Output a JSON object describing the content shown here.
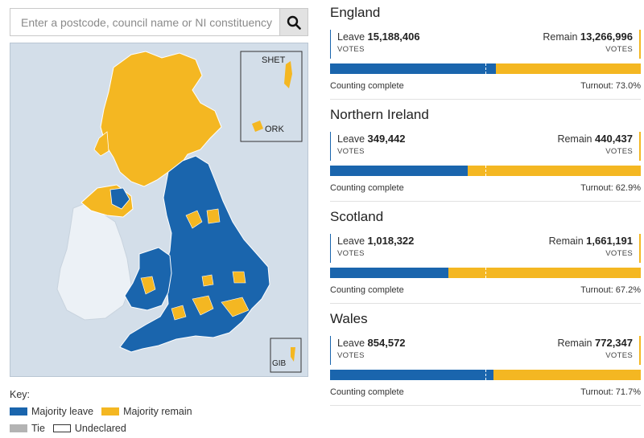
{
  "search": {
    "placeholder": "Enter a postcode, council name or NI constituency"
  },
  "map": {
    "inset_shetland": "SHET",
    "inset_orkney": "ORK",
    "inset_gibraltar": "GIB"
  },
  "key": {
    "title": "Key:",
    "items": [
      {
        "label": "Majority leave",
        "color": "#1a65ad"
      },
      {
        "label": "Majority remain",
        "color": "#f4b722"
      },
      {
        "label": "Tie",
        "color": "#b3b3b3"
      },
      {
        "label": "Undeclared",
        "color": "#ffffff"
      }
    ]
  },
  "regions": [
    {
      "name": "England",
      "leave_label": "Leave",
      "leave_votes": "15,188,406",
      "remain_label": "Remain",
      "remain_votes": "13,266,996",
      "votes_caption": "VOTES",
      "leave_share": 0.534,
      "status": "Counting complete",
      "turnout": "Turnout: 73.0%"
    },
    {
      "name": "Northern Ireland",
      "leave_label": "Leave",
      "leave_votes": "349,442",
      "remain_label": "Remain",
      "remain_votes": "440,437",
      "votes_caption": "VOTES",
      "leave_share": 0.442,
      "status": "Counting complete",
      "turnout": "Turnout: 62.9%"
    },
    {
      "name": "Scotland",
      "leave_label": "Leave",
      "leave_votes": "1,018,322",
      "remain_label": "Remain",
      "remain_votes": "1,661,191",
      "votes_caption": "VOTES",
      "leave_share": 0.38,
      "status": "Counting complete",
      "turnout": "Turnout: 67.2%"
    },
    {
      "name": "Wales",
      "leave_label": "Leave",
      "leave_votes": "854,572",
      "remain_label": "Remain",
      "remain_votes": "772,347",
      "votes_caption": "VOTES",
      "leave_share": 0.525,
      "status": "Counting complete",
      "turnout": "Turnout: 71.7%"
    }
  ]
}
